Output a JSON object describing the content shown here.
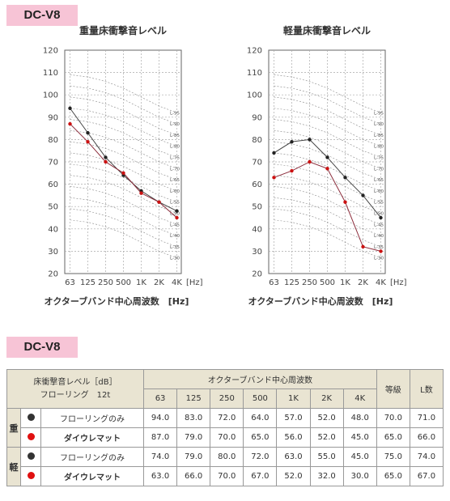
{
  "badges": {
    "top": "DC-V8",
    "bottom": "DC-V8"
  },
  "charts": {
    "x_axis_label": "オクターブバンド中心周波数　[Hz]",
    "x_ticks": [
      "63",
      "125",
      "250",
      "500",
      "1K",
      "2K",
      "4K"
    ],
    "y_ticks": [
      20,
      30,
      40,
      50,
      60,
      70,
      80,
      90,
      100,
      110,
      120
    ],
    "unit": "Hz",
    "l_curve_labels": [
      "L-95",
      "L-90",
      "L-85",
      "L-80",
      "L-75",
      "L-70",
      "L-65",
      "L-60",
      "L-55",
      "L-50",
      "L-45",
      "L-40",
      "L-35",
      "L-30"
    ]
  },
  "chart_data": [
    {
      "type": "line",
      "title": "重量床衝撃音レベル",
      "categories": [
        "63",
        "125",
        "250",
        "500",
        "1K",
        "2K",
        "4K"
      ],
      "ylim": [
        20,
        120
      ],
      "series": [
        {
          "name": "フローリングのみ",
          "color": "#222222",
          "values": [
            94,
            83,
            72,
            64,
            57,
            52,
            48
          ]
        },
        {
          "name": "ダイウレマット",
          "color": "#cc1111",
          "values": [
            87,
            79,
            70,
            65,
            56,
            52,
            45
          ]
        }
      ]
    },
    {
      "type": "line",
      "title": "軽量床衝撃音レベル",
      "categories": [
        "63",
        "125",
        "250",
        "500",
        "1K",
        "2K",
        "4K"
      ],
      "ylim": [
        20,
        120
      ],
      "series": [
        {
          "name": "フローリングのみ",
          "color": "#222222",
          "values": [
            74,
            79,
            80,
            72,
            63,
            55,
            45
          ]
        },
        {
          "name": "ダイウレマット",
          "color": "#cc1111",
          "values": [
            63,
            66,
            70,
            67,
            52,
            32,
            30
          ]
        }
      ]
    }
  ],
  "table": {
    "header_left_line1": "床衝撃音レベル［dB］",
    "header_left_line2": "フローリング　12t",
    "header_group": "オクターブバンド中心周波数",
    "freqs": [
      "63",
      "125",
      "250",
      "500",
      "1K",
      "2K",
      "4K"
    ],
    "col_grade": "等級",
    "col_l": "L数",
    "groups": [
      {
        "label": "重",
        "rows": [
          {
            "name": "フローリングのみ",
            "bold": false,
            "dot": "#333333",
            "values": [
              "94.0",
              "83.0",
              "72.0",
              "64.0",
              "57.0",
              "52.0",
              "48.0"
            ],
            "grade": "70.0",
            "l": "71.0"
          },
          {
            "name": "ダイウレマット",
            "bold": true,
            "dot": "#e01010",
            "values": [
              "87.0",
              "79.0",
              "70.0",
              "65.0",
              "56.0",
              "52.0",
              "45.0"
            ],
            "grade": "65.0",
            "l": "66.0"
          }
        ]
      },
      {
        "label": "軽",
        "rows": [
          {
            "name": "フローリングのみ",
            "bold": false,
            "dot": "#333333",
            "values": [
              "74.0",
              "79.0",
              "80.0",
              "72.0",
              "63.0",
              "55.0",
              "45.0"
            ],
            "grade": "75.0",
            "l": "74.0"
          },
          {
            "name": "ダイウレマット",
            "bold": true,
            "dot": "#e01010",
            "values": [
              "63.0",
              "66.0",
              "70.0",
              "67.0",
              "52.0",
              "32.0",
              "30.0"
            ],
            "grade": "65.0",
            "l": "67.0"
          }
        ]
      }
    ]
  }
}
